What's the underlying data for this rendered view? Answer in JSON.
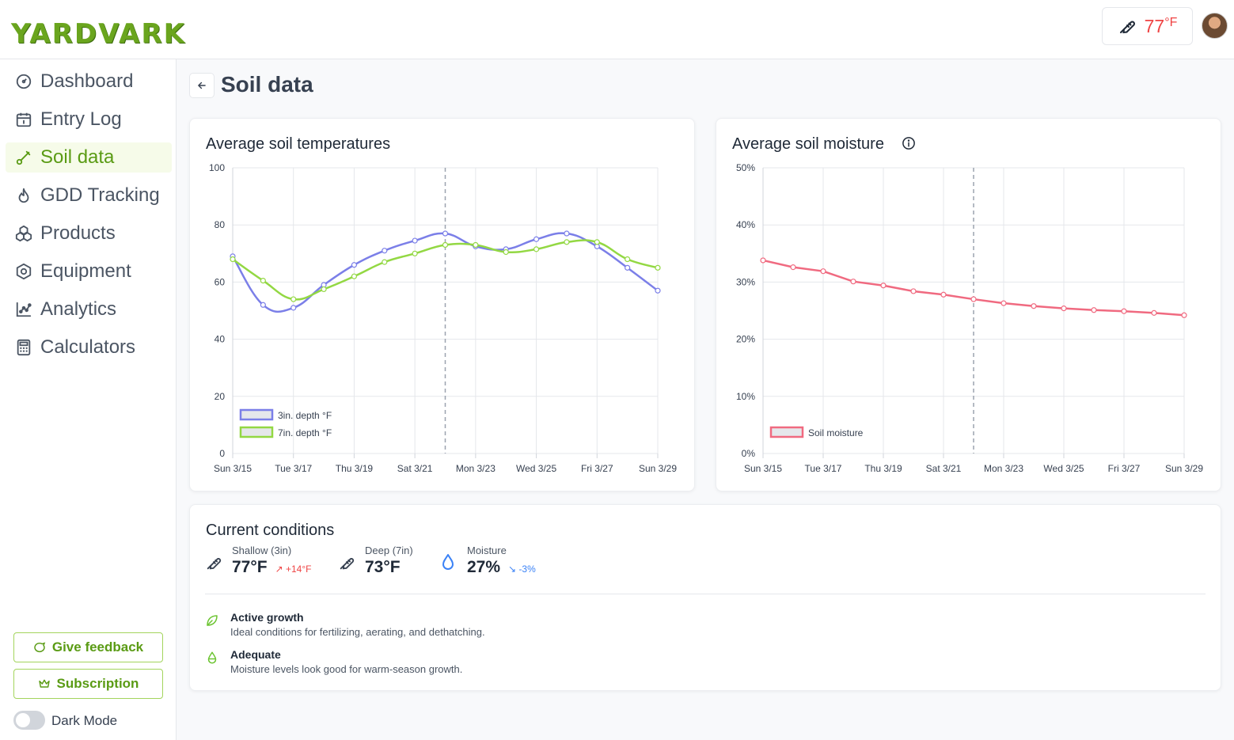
{
  "app": {
    "logo_text": "YARDVARK"
  },
  "header": {
    "temperature": "77",
    "temperature_unit": "°F"
  },
  "sidebar": {
    "items": [
      {
        "label": "Dashboard",
        "icon": "gauge-icon"
      },
      {
        "label": "Entry Log",
        "icon": "calendar-icon"
      },
      {
        "label": "Soil data",
        "icon": "probe-icon",
        "active": true
      },
      {
        "label": "GDD Tracking",
        "icon": "flame-icon"
      },
      {
        "label": "Products",
        "icon": "boxes-icon"
      },
      {
        "label": "Equipment",
        "icon": "hexagon-icon"
      },
      {
        "label": "Analytics",
        "icon": "chart-icon"
      },
      {
        "label": "Calculators",
        "icon": "calculator-icon"
      }
    ],
    "feedback_label": "Give feedback",
    "subscription_label": "Subscription",
    "dark_mode_label": "Dark Mode"
  },
  "page": {
    "title": "Soil data"
  },
  "temp_card": {
    "title": "Average soil temperatures"
  },
  "moisture_card": {
    "title": "Average soil moisture"
  },
  "chart_data": [
    {
      "type": "line",
      "title": "Average soil temperatures",
      "categories": [
        "Sun 3/15",
        "Mon 3/16",
        "Tue 3/17",
        "Wed 3/18",
        "Thu 3/19",
        "Fri 3/20",
        "Sat 3/21",
        "Sun 3/22",
        "Mon 3/23",
        "Tue 3/24",
        "Wed 3/25",
        "Thu 3/26",
        "Fri 3/27",
        "Sat 3/28",
        "Sun 3/29"
      ],
      "tick_labels": [
        "Sun 3/15",
        "Tue 3/17",
        "Thu 3/19",
        "Sat 3/21",
        "Mon 3/23",
        "Wed 3/25",
        "Fri 3/27",
        "Sun 3/29"
      ],
      "ylim": [
        0,
        100
      ],
      "yticks": [
        "0",
        "20",
        "40",
        "60",
        "80",
        "100"
      ],
      "current_marker": "Sun 3/22",
      "legend_position": "bottom-left",
      "series": [
        {
          "name": "3in. depth °F",
          "color": "#7b7fe8",
          "values": [
            69,
            52,
            51,
            59,
            66,
            71,
            74.5,
            77,
            72.5,
            71.5,
            75,
            77,
            72.5,
            65,
            57
          ]
        },
        {
          "name": "7in. depth °F",
          "color": "#93d843",
          "values": [
            68,
            60.5,
            54,
            57.5,
            62,
            67,
            70,
            73,
            73,
            70.5,
            71.5,
            74,
            74,
            68,
            65
          ]
        }
      ]
    },
    {
      "type": "line",
      "title": "Average soil moisture",
      "categories": [
        "Sun 3/15",
        "Mon 3/16",
        "Tue 3/17",
        "Wed 3/18",
        "Thu 3/19",
        "Fri 3/20",
        "Sat 3/21",
        "Sun 3/22",
        "Mon 3/23",
        "Tue 3/24",
        "Wed 3/25",
        "Thu 3/26",
        "Fri 3/27",
        "Sat 3/28",
        "Sun 3/29"
      ],
      "tick_labels": [
        "Sun 3/15",
        "Tue 3/17",
        "Thu 3/19",
        "Sat 3/21",
        "Mon 3/23",
        "Wed 3/25",
        "Fri 3/27",
        "Sun 3/29"
      ],
      "ylim": [
        0,
        50
      ],
      "yticks": [
        "0%",
        "10%",
        "20%",
        "30%",
        "40%",
        "50%"
      ],
      "current_marker": "Sun 3/22",
      "legend_position": "bottom-left",
      "series": [
        {
          "name": "Soil moisture",
          "color": "#f06a80",
          "values": [
            33.8,
            32.6,
            31.9,
            30.1,
            29.4,
            28.4,
            27.8,
            27,
            26.3,
            25.8,
            25.4,
            25.1,
            24.9,
            24.6,
            24.2
          ]
        }
      ]
    }
  ],
  "conditions": {
    "title": "Current conditions",
    "shallow": {
      "label": "Shallow (3in)",
      "value": "77°F",
      "delta": "+14°F"
    },
    "deep": {
      "label": "Deep (7in)",
      "value": "73°F"
    },
    "moisture": {
      "label": "Moisture",
      "value": "27%",
      "delta": "-3%"
    },
    "notes": [
      {
        "title": "Active growth",
        "desc": "Ideal conditions for fertilizing, aerating, and dethatching."
      },
      {
        "title": "Adequate",
        "desc": "Moisture levels look good for warm-season growth."
      }
    ]
  },
  "colors": {
    "accent": "#5a9b14",
    "danger": "#ef4444",
    "info": "#3b82f6"
  }
}
